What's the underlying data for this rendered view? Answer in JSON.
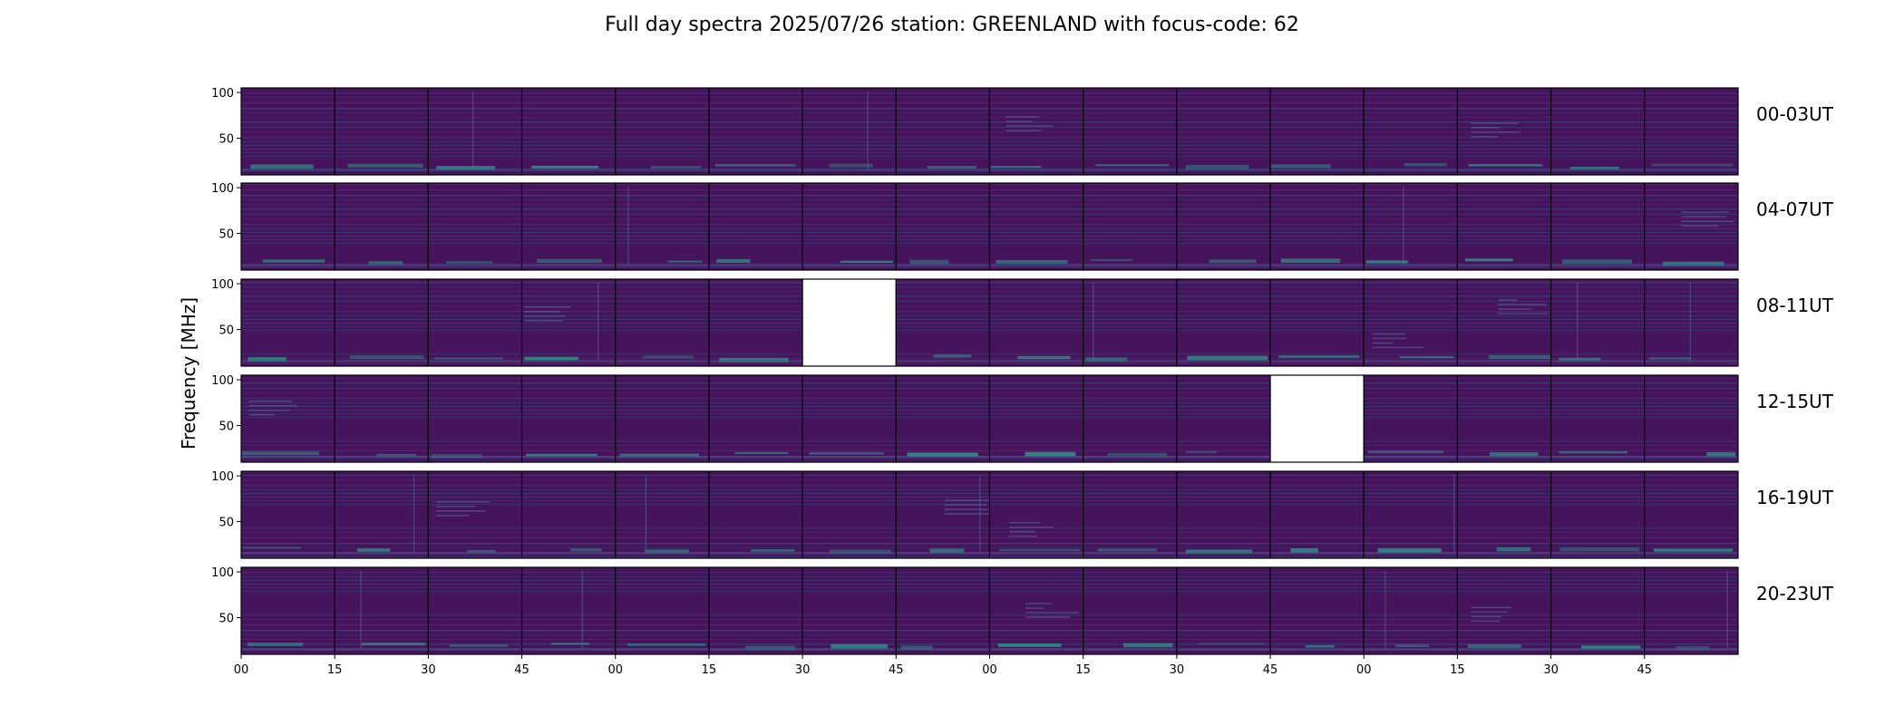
{
  "chart_data": {
    "type": "heatmap",
    "title": "Full day spectra 2025/07/26 station: GREENLAND with focus-code: 62",
    "ylabel": "Frequency [MHz]",
    "xlabel": "",
    "ylim": [
      10,
      105
    ],
    "y_ticks": [
      "100",
      "50"
    ],
    "y_tick_values": [
      100,
      50
    ],
    "x_ticks": [
      "00",
      "15",
      "30",
      "45",
      "00",
      "15",
      "30",
      "45",
      "00",
      "15",
      "30",
      "45",
      "00",
      "15",
      "30",
      "45"
    ],
    "rows": [
      {
        "label": "00-03UT",
        "missing": []
      },
      {
        "label": "04-07UT",
        "missing": []
      },
      {
        "label": "08-11UT",
        "missing": [
          6
        ]
      },
      {
        "label": "12-15UT",
        "missing": [
          11
        ]
      },
      {
        "label": "16-19UT",
        "missing": []
      },
      {
        "label": "20-23UT",
        "missing": []
      }
    ],
    "panels_per_row": 16,
    "panel_minutes": 15,
    "colormap": "viridis",
    "background_color": "#46145c",
    "rfi_color": "#3d5f92",
    "high_color": "#2aa08a"
  }
}
